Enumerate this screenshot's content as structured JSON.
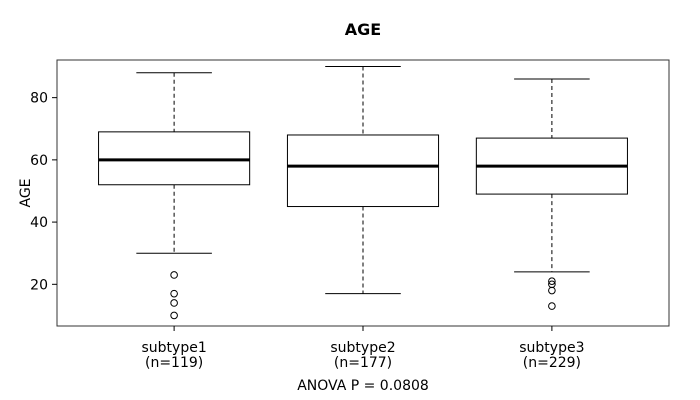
{
  "chart_data": {
    "type": "boxplot",
    "title": "AGE",
    "ylabel": "AGE",
    "xlabel": "",
    "annotation": "ANOVA P = 0.0808",
    "yticks": [
      20,
      40,
      60,
      80
    ],
    "ylim": [
      6.6,
      92.1
    ],
    "grid": false,
    "box_color": "#000000",
    "box_fill": "#ffffff",
    "groups": [
      {
        "label": "subtype1",
        "sublabel": "(n=119)",
        "n": 119,
        "whisker_low": 30,
        "q1": 52,
        "median": 60,
        "q3": 69,
        "whisker_high": 88,
        "outliers": [
          23,
          17,
          14,
          10
        ]
      },
      {
        "label": "subtype2",
        "sublabel": "(n=177)",
        "n": 177,
        "whisker_low": 17,
        "q1": 45,
        "median": 58,
        "q3": 68,
        "whisker_high": 90,
        "outliers": []
      },
      {
        "label": "subtype3",
        "sublabel": "(n=229)",
        "n": 229,
        "whisker_low": 24,
        "q1": 49,
        "median": 58,
        "q3": 67,
        "whisker_high": 86,
        "outliers": [
          21,
          20,
          18,
          13
        ]
      }
    ]
  }
}
